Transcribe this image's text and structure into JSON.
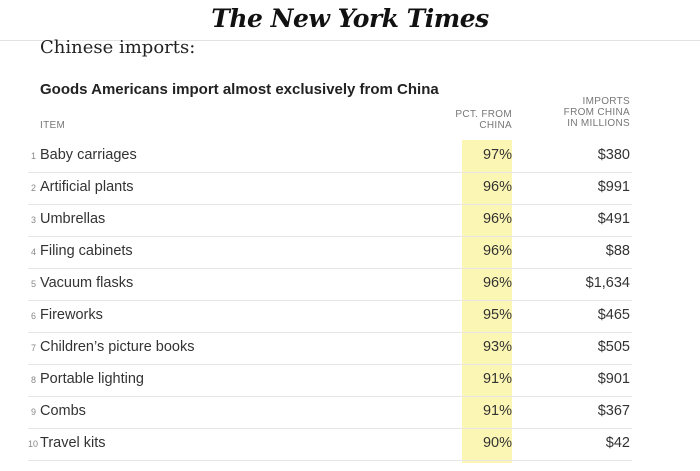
{
  "masthead": {
    "logo_text": "The New York Times"
  },
  "page_title": "Chinese imports:",
  "table": {
    "title": "Goods Americans import almost exclusively from China",
    "headers": {
      "item": "ITEM",
      "pct_line1": "PCT. FROM",
      "pct_line2": "CHINA",
      "imports_line1": "IMPORTS",
      "imports_line2": "FROM CHINA",
      "imports_line3": "IN MILLIONS"
    },
    "highlight_color": "#fbf6b4",
    "rows": [
      {
        "rank": "1",
        "item": "Baby carriages",
        "pct": "97%",
        "imports": "$380"
      },
      {
        "rank": "2",
        "item": "Artificial plants",
        "pct": "96%",
        "imports": "$991"
      },
      {
        "rank": "3",
        "item": "Umbrellas",
        "pct": "96%",
        "imports": "$491"
      },
      {
        "rank": "4",
        "item": "Filing cabinets",
        "pct": "96%",
        "imports": "$88"
      },
      {
        "rank": "5",
        "item": "Vacuum flasks",
        "pct": "96%",
        "imports": "$1,634"
      },
      {
        "rank": "6",
        "item": "Fireworks",
        "pct": "95%",
        "imports": "$465"
      },
      {
        "rank": "7",
        "item": "Children’s picture books",
        "pct": "93%",
        "imports": "$505"
      },
      {
        "rank": "8",
        "item": "Portable lighting",
        "pct": "91%",
        "imports": "$901"
      },
      {
        "rank": "9",
        "item": "Combs",
        "pct": "91%",
        "imports": "$367"
      },
      {
        "rank": "10",
        "item": "Travel kits",
        "pct": "90%",
        "imports": "$42"
      }
    ]
  }
}
